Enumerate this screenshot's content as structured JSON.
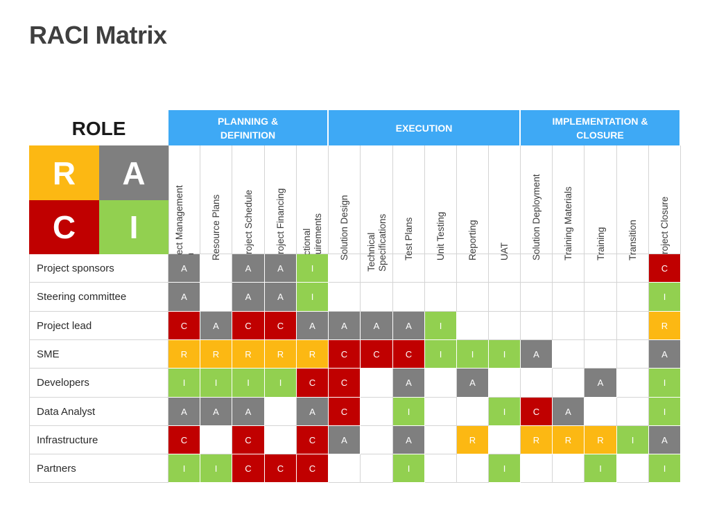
{
  "slide": {
    "title": "RACI Matrix"
  },
  "role_header": "ROLE",
  "legend": [
    {
      "letter": "R",
      "code": "R"
    },
    {
      "letter": "A",
      "code": "A"
    },
    {
      "letter": "C",
      "code": "C"
    },
    {
      "letter": "I",
      "code": "I"
    }
  ],
  "colors": {
    "R": "#fcb813",
    "A": "#7f7f7f",
    "C": "#c00000",
    "I": "#92d050",
    "header": "#3ea9f5"
  },
  "groups": [
    {
      "name": "PLANNING & DEFINITION",
      "span": 5
    },
    {
      "name": "EXECUTION",
      "span": 6
    },
    {
      "name": "IMPLEMENTATION & CLOSURE",
      "span": 5
    }
  ],
  "activities": [
    [
      "Project Management",
      "Plan"
    ],
    [
      "Resource Plans"
    ],
    [
      "Project Schedule"
    ],
    [
      "Project Financing"
    ],
    [
      "Functional",
      "Requirements"
    ],
    [
      "Solution Design"
    ],
    [
      "Technical",
      "Specifications"
    ],
    [
      "Test Plans"
    ],
    [
      "Unit Testing"
    ],
    [
      "Reporting"
    ],
    [
      "UAT"
    ],
    [
      "Solution Deployment"
    ],
    [
      "Training Materials"
    ],
    [
      "Training"
    ],
    [
      "Transition"
    ],
    [
      "Project Closure"
    ]
  ],
  "roles": [
    {
      "name": "Project sponsors",
      "cells": [
        "A",
        "",
        "A",
        "A",
        "I",
        "",
        "",
        "",
        "",
        "",
        "",
        "",
        "",
        "",
        "",
        "C"
      ]
    },
    {
      "name": "Steering committee",
      "cells": [
        "A",
        "",
        "A",
        "A",
        "I",
        "",
        "",
        "",
        "",
        "",
        "",
        "",
        "",
        "",
        "",
        "I"
      ]
    },
    {
      "name": "Project lead",
      "cells": [
        "C",
        "A",
        "C",
        "C",
        "A",
        "A",
        "A",
        "A",
        "I",
        "",
        "",
        "",
        "",
        "",
        "",
        "R"
      ]
    },
    {
      "name": "SME",
      "cells": [
        "R",
        "R",
        "R",
        "R",
        "R",
        "C",
        "C",
        "C",
        "I",
        "I",
        "I",
        "A",
        "",
        "",
        "",
        "A"
      ]
    },
    {
      "name": "Developers",
      "cells": [
        "I",
        "I",
        "I",
        "I",
        "C",
        "C",
        "",
        "A",
        "",
        "A",
        "",
        "",
        "",
        "A",
        "",
        "I"
      ]
    },
    {
      "name": "Data Analyst",
      "cells": [
        "A",
        "A",
        "A",
        "",
        "A",
        "C",
        "",
        "I",
        "",
        "",
        "I",
        "C",
        "A",
        "",
        "",
        "I"
      ]
    },
    {
      "name": "Infrastructure",
      "cells": [
        "C",
        "",
        "C",
        "",
        "C",
        "A",
        "",
        "A",
        "",
        "R",
        "",
        "R",
        "R",
        "R",
        "I",
        "A"
      ]
    },
    {
      "name": "Partners",
      "cells": [
        "I",
        "I",
        "C",
        "C",
        "C",
        "",
        "",
        "I",
        "",
        "",
        "I",
        "",
        "",
        "I",
        "",
        "I"
      ]
    }
  ]
}
